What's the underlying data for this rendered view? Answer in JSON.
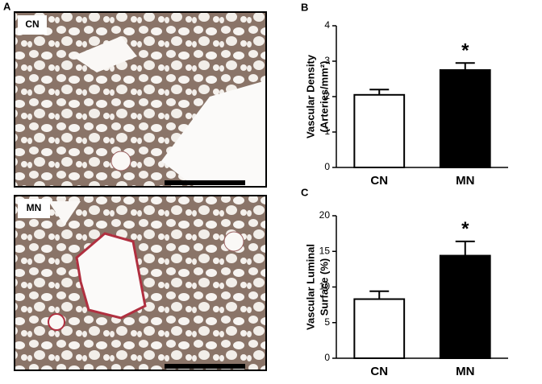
{
  "panel_a": {
    "label": "A",
    "images": [
      {
        "label": "CN"
      },
      {
        "label": "MN"
      }
    ]
  },
  "chart_data": [
    {
      "type": "bar",
      "panel_label": "B",
      "y_label": [
        "Vascular Density",
        "(Arteries/mm²)"
      ],
      "categories": [
        "CN",
        "MN"
      ],
      "values": [
        2.05,
        2.75
      ],
      "errors": [
        0.15,
        0.2
      ],
      "colors": [
        "#ffffff",
        "#000000"
      ],
      "significance": [
        null,
        "*"
      ],
      "ylim": [
        0,
        4
      ],
      "yticks": [
        0,
        1,
        2,
        3,
        4
      ]
    },
    {
      "type": "bar",
      "panel_label": "C",
      "y_label": [
        "Vascular Luminal",
        "Surface (%)"
      ],
      "categories": [
        "CN",
        "MN"
      ],
      "values": [
        8.3,
        14.4
      ],
      "errors": [
        1.1,
        2.0
      ],
      "colors": [
        "#ffffff",
        "#000000"
      ],
      "significance": [
        null,
        "*"
      ],
      "ylim": [
        0,
        20
      ],
      "yticks": [
        0,
        5,
        10,
        15,
        20
      ]
    }
  ]
}
